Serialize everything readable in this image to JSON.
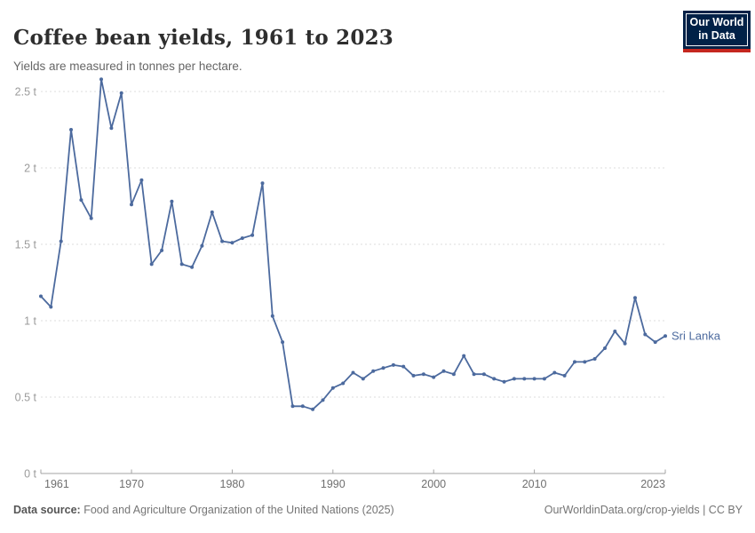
{
  "header": {
    "title": "Coffee bean yields, 1961 to 2023",
    "subtitle": "Yields are measured in tonnes per hectare."
  },
  "logo": {
    "line1": "Our World",
    "line2": "in Data",
    "bg_color": "#002147",
    "bar_color": "#c5271f",
    "text_color": "#ffffff"
  },
  "footer": {
    "source_label": "Data source:",
    "source_text": " Food and Agriculture Organization of the United Nations (2025)",
    "link": "OurWorldinData.org/crop-yields",
    "separator": " | ",
    "license": "CC BY"
  },
  "chart_data": {
    "type": "line",
    "title": "Coffee bean yields, 1961 to 2023",
    "ylabel": "tonnes per hectare",
    "xlabel": "",
    "unit": "t",
    "xlim": [
      1961,
      2023
    ],
    "ylim": [
      0,
      2.5
    ],
    "x_ticks": [
      1961,
      1970,
      1980,
      1990,
      2000,
      2010,
      2023
    ],
    "y_ticks": [
      0,
      0.5,
      1,
      1.5,
      2,
      2.5
    ],
    "y_tick_suffix": " t",
    "grid": "dashed-horizontal",
    "legend": "end-of-line-label",
    "series": [
      {
        "name": "Sri Lanka",
        "color": "#4c6a9e",
        "x": [
          1961,
          1962,
          1963,
          1964,
          1965,
          1966,
          1967,
          1968,
          1969,
          1970,
          1971,
          1972,
          1973,
          1974,
          1975,
          1976,
          1977,
          1978,
          1979,
          1980,
          1981,
          1982,
          1983,
          1984,
          1985,
          1986,
          1987,
          1988,
          1989,
          1990,
          1991,
          1992,
          1993,
          1994,
          1995,
          1996,
          1997,
          1998,
          1999,
          2000,
          2001,
          2002,
          2003,
          2004,
          2005,
          2006,
          2007,
          2008,
          2009,
          2010,
          2011,
          2012,
          2013,
          2014,
          2015,
          2016,
          2017,
          2018,
          2019,
          2020,
          2021,
          2022,
          2023
        ],
        "values": [
          1.16,
          1.09,
          1.52,
          2.25,
          1.79,
          1.67,
          2.58,
          2.26,
          2.49,
          1.76,
          1.92,
          1.37,
          1.46,
          1.78,
          1.37,
          1.35,
          1.49,
          1.71,
          1.52,
          1.51,
          1.54,
          1.56,
          1.9,
          1.03,
          0.86,
          0.44,
          0.44,
          0.42,
          0.48,
          0.56,
          0.59,
          0.66,
          0.62,
          0.67,
          0.69,
          0.71,
          0.7,
          0.64,
          0.65,
          0.63,
          0.67,
          0.65,
          0.77,
          0.65,
          0.65,
          0.62,
          0.6,
          0.62,
          0.62,
          0.62,
          0.62,
          0.66,
          0.64,
          0.73,
          0.73,
          0.75,
          0.82,
          0.93,
          0.85,
          1.15,
          0.91,
          0.86,
          0.9
        ]
      }
    ]
  }
}
